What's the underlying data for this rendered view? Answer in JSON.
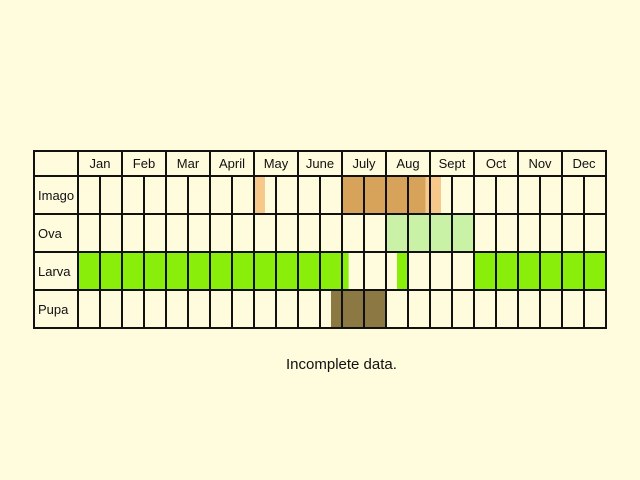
{
  "chart_data": {
    "type": "table",
    "title": "",
    "months": [
      "Jan",
      "Feb",
      "Mar",
      "April",
      "May",
      "June",
      "July",
      "Aug",
      "Sept",
      "Oct",
      "Nov",
      "Dec"
    ],
    "halves_per_month": 2,
    "stages": [
      {
        "name": "Imago",
        "color": "#d7a35b",
        "light_color": "#f6c88a",
        "periods": [
          {
            "start_month": 4.0,
            "end_month": 4.25,
            "shade": "light"
          },
          {
            "start_month": 6.0,
            "end_month": 7.9,
            "shade": "dark"
          },
          {
            "start_month": 7.9,
            "end_month": 8.25,
            "shade": "light"
          }
        ]
      },
      {
        "name": "Ova",
        "color": "#c9f2a6",
        "light_color": "#c9f2a6",
        "periods": [
          {
            "start_month": 7.0,
            "end_month": 9.0,
            "shade": "dark"
          }
        ]
      },
      {
        "name": "Larva",
        "color": "#88ee0a",
        "light_color": "#88ee0a",
        "periods": [
          {
            "start_month": 0.0,
            "end_month": 6.15,
            "shade": "dark"
          },
          {
            "start_month": 7.25,
            "end_month": 7.5,
            "shade": "dark"
          },
          {
            "start_month": 9.0,
            "end_month": 12.0,
            "shade": "dark"
          }
        ]
      },
      {
        "name": "Pupa",
        "color": "#8c7843",
        "light_color": "#8c7843",
        "periods": [
          {
            "start_month": 5.75,
            "end_month": 7.0,
            "shade": "dark"
          }
        ]
      }
    ]
  },
  "note": "Incomplete data."
}
